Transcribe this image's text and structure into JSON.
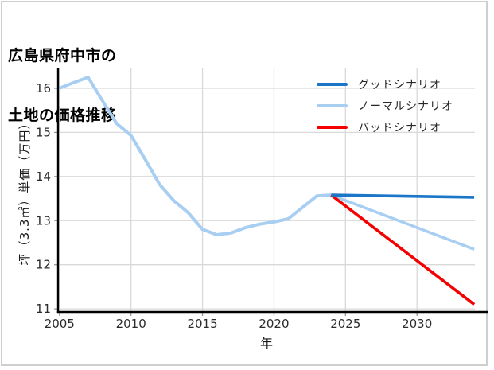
{
  "title": {
    "line1": "広島県府中市の",
    "line2": "土地の価格推移"
  },
  "chart_data": {
    "type": "line",
    "title": "広島県府中市の土地の価格推移",
    "xlabel": "年",
    "ylabel": "坪（3.3㎡）単価（万円）",
    "xlim": [
      2004.9,
      2034.05
    ],
    "ylim": [
      10.93,
      16.45
    ],
    "x_ticks": [
      2005,
      2010,
      2015,
      2020,
      2025,
      2030
    ],
    "y_ticks": [
      16,
      15,
      14,
      13,
      12,
      11
    ],
    "grid": true,
    "colors": {
      "good": "#1b76c9",
      "normal": "#a8cef2",
      "bad": "#f50000",
      "grid": "#d9d9d9",
      "spine": "#000000",
      "tick_mark": "#9a9a9a",
      "tick_text": "#2b2b2b"
    },
    "series": [
      {
        "id": "historical-price",
        "color_key": "normal",
        "width": 4,
        "x": [
          2005,
          2006,
          2007,
          2008,
          2009,
          2010,
          2011,
          2012,
          2013,
          2014,
          2015,
          2016,
          2017,
          2018,
          2019,
          2020,
          2021,
          2022,
          2023,
          2024
        ],
        "y": [
          16.0,
          16.13,
          16.25,
          15.72,
          15.2,
          14.93,
          14.38,
          13.82,
          13.45,
          13.18,
          12.8,
          12.68,
          12.72,
          12.84,
          12.92,
          12.97,
          13.04,
          13.3,
          13.56,
          13.58
        ]
      },
      {
        "id": "normal-scenario",
        "color_key": "normal",
        "width": 3.6,
        "x": [
          2024,
          2034
        ],
        "y": [
          13.58,
          12.35
        ]
      },
      {
        "id": "bad-scenario",
        "color_key": "bad",
        "width": 3.6,
        "x": [
          2024,
          2034
        ],
        "y": [
          13.58,
          11.1
        ]
      },
      {
        "id": "good-scenario",
        "color_key": "good",
        "width": 3.6,
        "x": [
          2024,
          2034
        ],
        "y": [
          13.58,
          13.53
        ]
      }
    ],
    "legend": {
      "position": "top-right",
      "items": [
        {
          "label": "グッドシナリオ",
          "color_key": "good"
        },
        {
          "label": "ノーマルシナリオ",
          "color_key": "normal"
        },
        {
          "label": "バッドシナリオ",
          "color_key": "bad"
        }
      ]
    }
  }
}
